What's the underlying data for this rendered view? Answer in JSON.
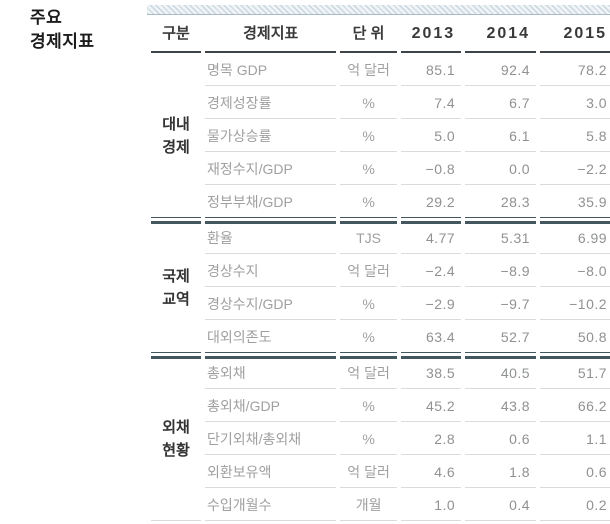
{
  "title": {
    "lines": [
      "주요",
      "경제지표"
    ]
  },
  "table": {
    "header": {
      "category": "구분",
      "indicator": "경제지표",
      "unit": "단 위",
      "years": [
        "2013",
        "2014",
        "2015"
      ]
    },
    "sections": [
      {
        "category": "대내경제",
        "category_lines": [
          "대내",
          "경제"
        ],
        "rows": [
          {
            "indicator": "명목 GDP",
            "unit": "억 달러",
            "values": [
              "85.1",
              "92.4",
              "78.2"
            ]
          },
          {
            "indicator": "경제성장률",
            "unit": "%",
            "values": [
              "7.4",
              "6.7",
              "3.0"
            ]
          },
          {
            "indicator": "물가상승률",
            "unit": "%",
            "values": [
              "5.0",
              "6.1",
              "5.8"
            ]
          },
          {
            "indicator": "재정수지/GDP",
            "unit": "%",
            "values": [
              "−0.8",
              "0.0",
              "−2.2"
            ]
          },
          {
            "indicator": "정부부채/GDP",
            "unit": "%",
            "values": [
              "29.2",
              "28.3",
              "35.9"
            ]
          }
        ]
      },
      {
        "category": "국제교역",
        "category_lines": [
          "국제",
          "교역"
        ],
        "rows": [
          {
            "indicator": "환율",
            "unit": "TJS",
            "values": [
              "4.77",
              "5.31",
              "6.99"
            ]
          },
          {
            "indicator": "경상수지",
            "unit": "억 달러",
            "values": [
              "−2.4",
              "−8.9",
              "−8.0"
            ]
          },
          {
            "indicator": "경상수지/GDP",
            "unit": "%",
            "values": [
              "−2.9",
              "−9.7",
              "−10.2"
            ]
          },
          {
            "indicator": "대외의존도",
            "unit": "%",
            "values": [
              "63.4",
              "52.7",
              "50.8"
            ]
          }
        ]
      },
      {
        "category": "외채현황",
        "category_lines": [
          "외채",
          "현황"
        ],
        "rows": [
          {
            "indicator": "총외채",
            "unit": "억 달러",
            "values": [
              "38.5",
              "40.5",
              "51.7"
            ]
          },
          {
            "indicator": "총외채/GDP",
            "unit": "%",
            "values": [
              "45.2",
              "43.8",
              "66.2"
            ]
          },
          {
            "indicator": "단기외채/총외채",
            "unit": "%",
            "values": [
              "2.8",
              "0.6",
              "1.1"
            ]
          },
          {
            "indicator": "외환보유액",
            "unit": "억 달러",
            "values": [
              "4.6",
              "1.8",
              "0.6"
            ]
          },
          {
            "indicator": "수입개월수",
            "unit": "개월",
            "values": [
              "1.0",
              "0.4",
              "0.2"
            ]
          }
        ]
      }
    ]
  },
  "colors": {
    "section_separator": "#44565e",
    "header_rule": "#3f4448",
    "row_divider": "#d9dcdd",
    "hatch_stripe": "#c8d6de",
    "hatch_background": "#f0f4f7",
    "hatch_edge": "#a9bcc6",
    "header_text": "#3a3a3a",
    "data_text": "#a0a0a0",
    "title_text": "#1c1c1c"
  }
}
